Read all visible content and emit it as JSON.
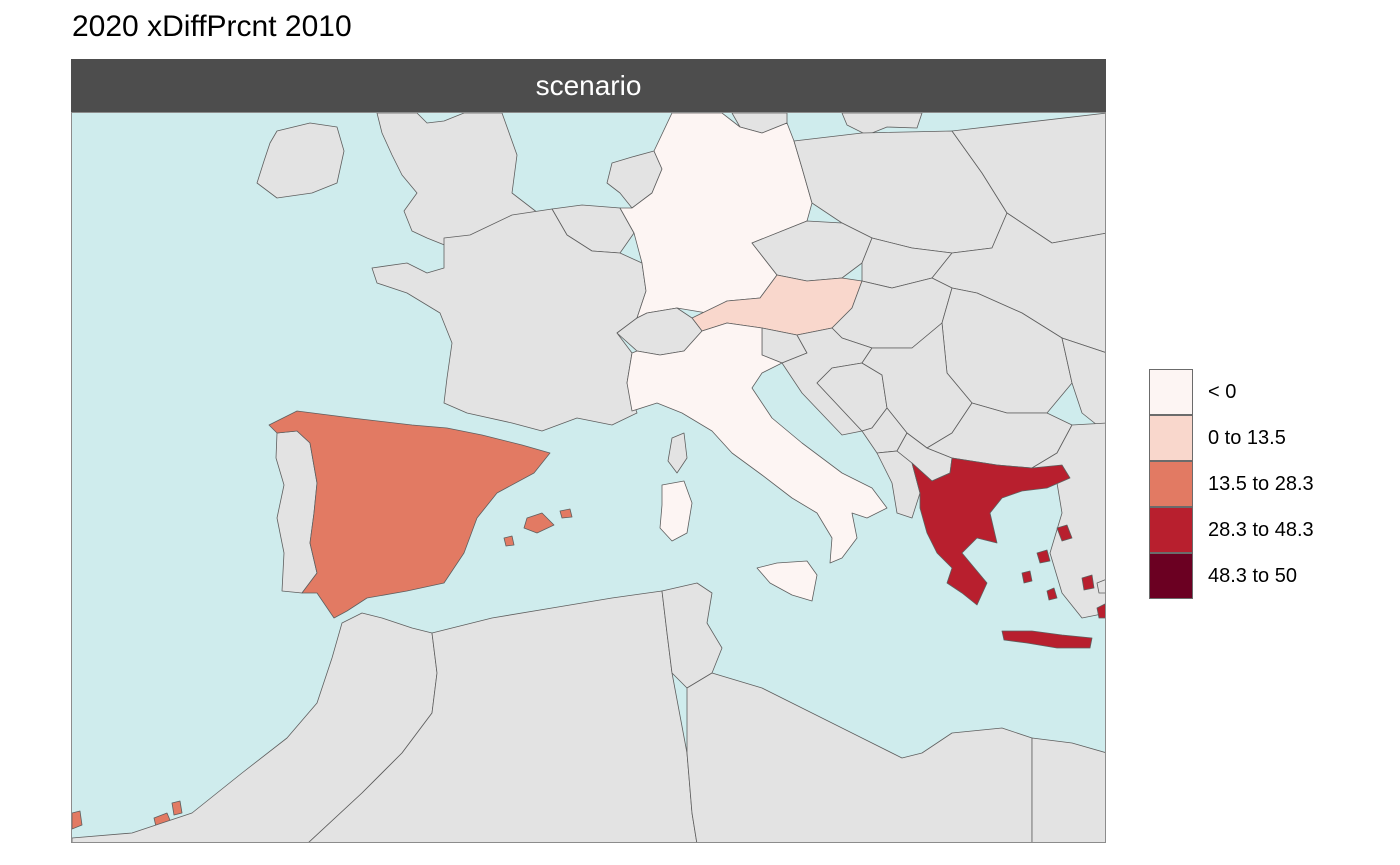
{
  "title": "2020 xDiffPrcnt 2010",
  "facet_label": "scenario",
  "colors": {
    "sea": "#cfeced",
    "land_other": "#e3e3e3",
    "border": "#5f5f5f"
  },
  "legend": [
    {
      "label": "< 0",
      "color": "#fdf5f3"
    },
    {
      "label": "0 to 13.5",
      "color": "#f9d7cc"
    },
    {
      "label": "13.5 to 28.3",
      "color": "#e27a63"
    },
    {
      "label": "28.3 to 48.3",
      "color": "#b81f2e"
    },
    {
      "label": "48.3 to 50",
      "color": "#6b0022"
    }
  ],
  "regions": [
    {
      "name": "Germany",
      "class": "< 0"
    },
    {
      "name": "Italy",
      "class": "< 0"
    },
    {
      "name": "Austria",
      "class": "0 to 13.5"
    },
    {
      "name": "Spain",
      "class": "13.5 to 28.3"
    },
    {
      "name": "Greece",
      "class": "28.3 to 48.3"
    }
  ]
}
